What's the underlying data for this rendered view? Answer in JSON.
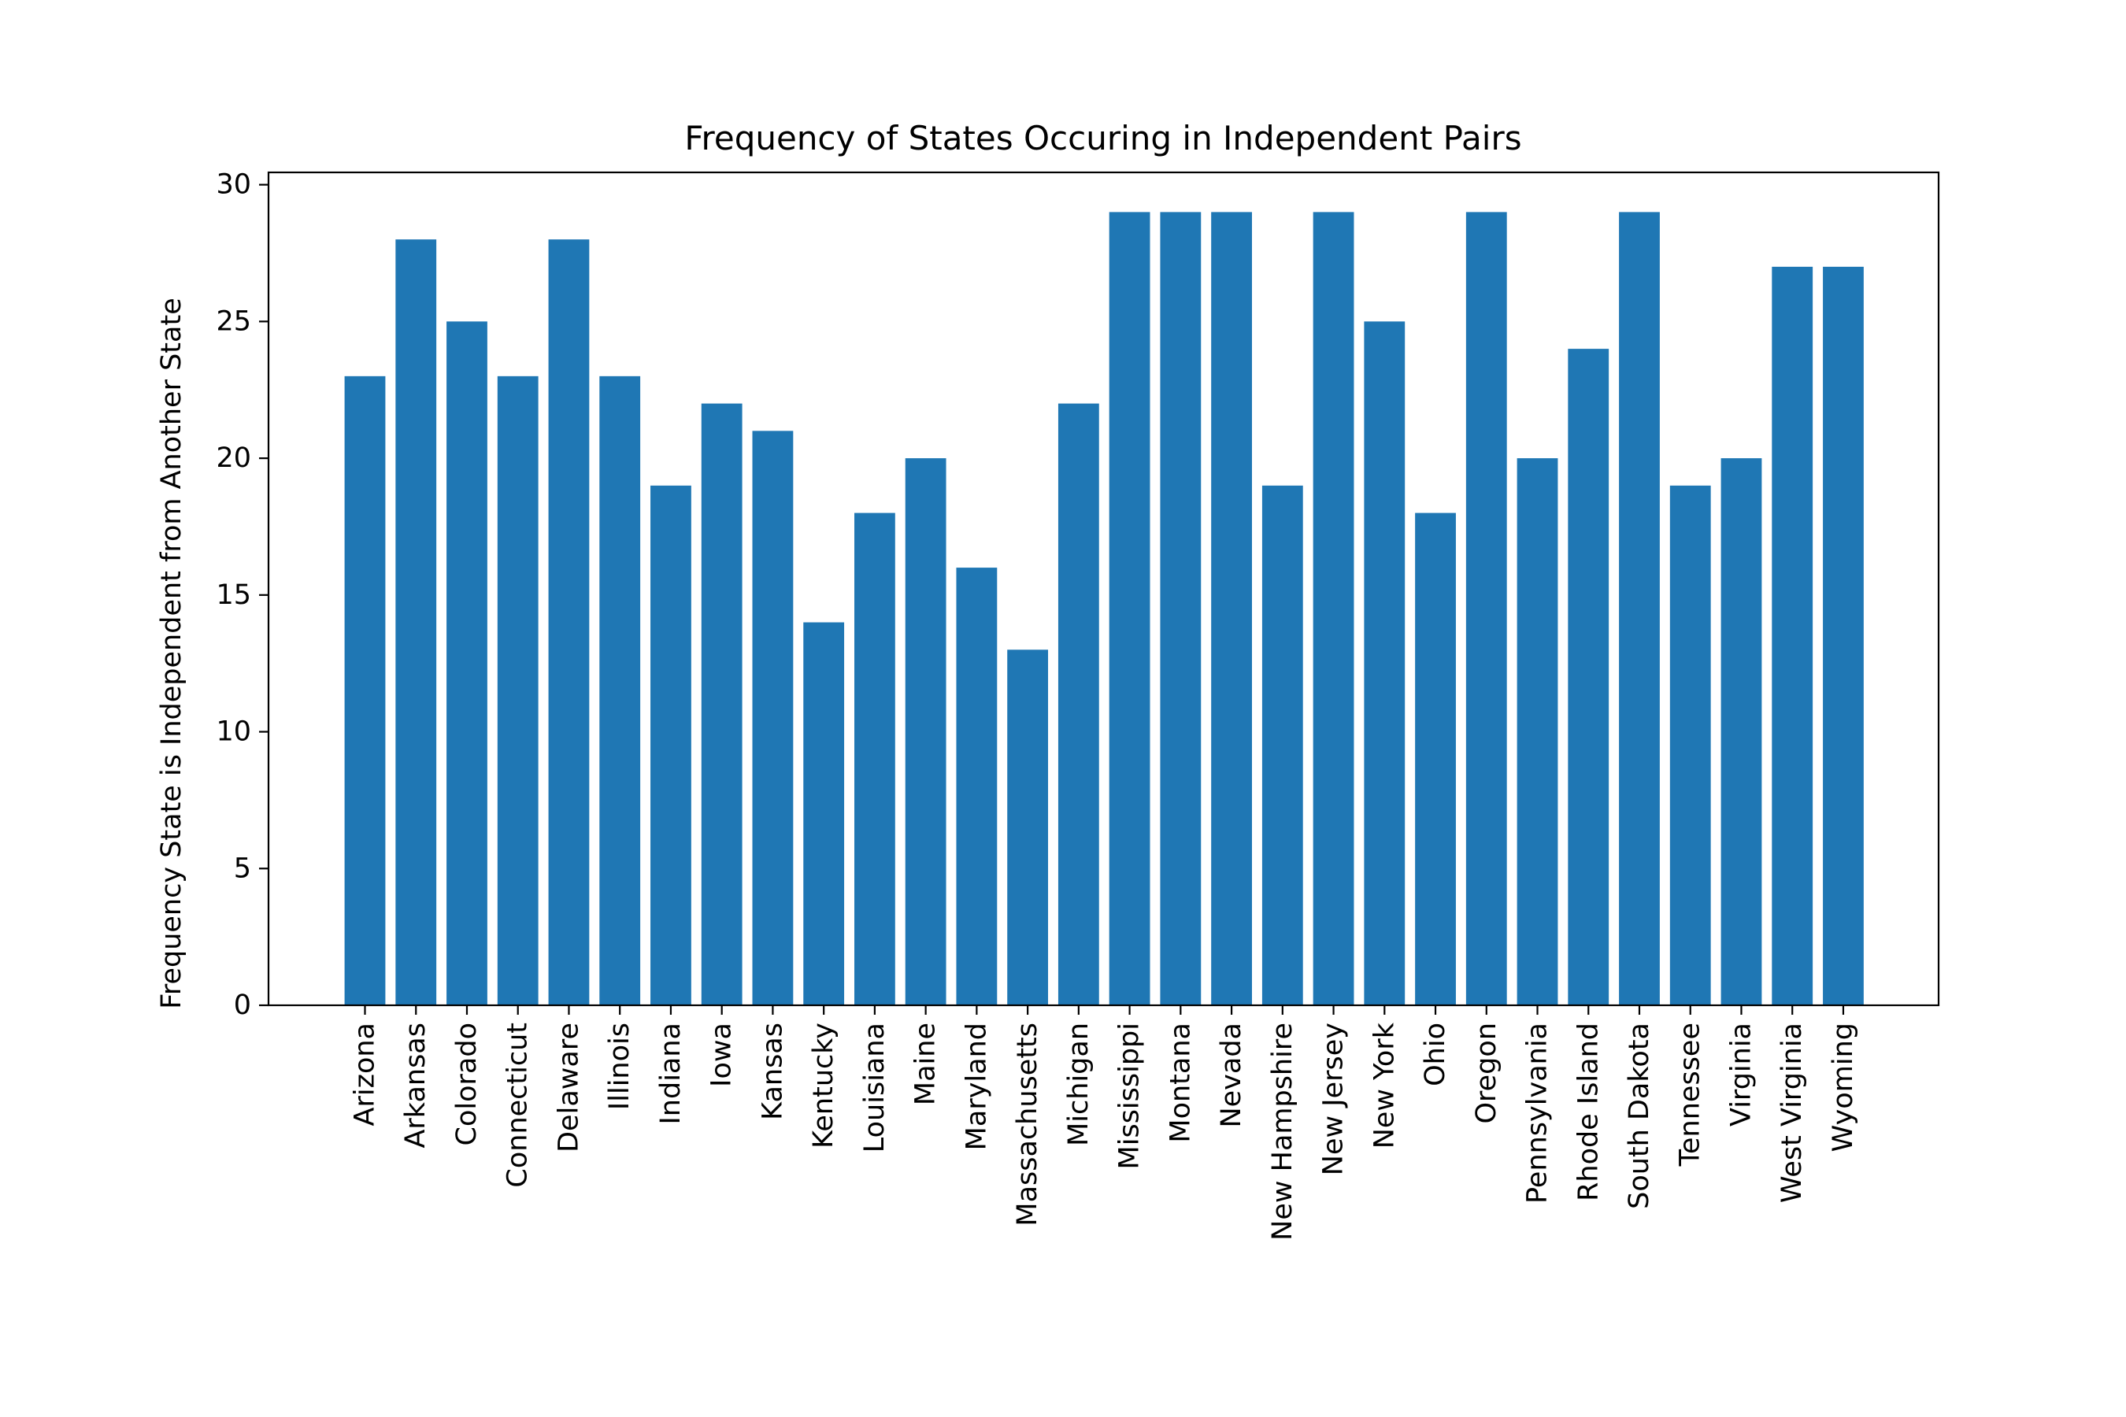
{
  "chart_data": {
    "type": "bar",
    "title": "Frequency of States Occuring in Independent Pairs",
    "xlabel": "",
    "ylabel": "Frequency State is Independent from Another State",
    "categories": [
      "Arizona",
      "Arkansas",
      "Colorado",
      "Connecticut",
      "Delaware",
      "Illinois",
      "Indiana",
      "Iowa",
      "Kansas",
      "Kentucky",
      "Louisiana",
      "Maine",
      "Maryland",
      "Massachusetts",
      "Michigan",
      "Mississippi",
      "Montana",
      "Nevada",
      "New Hampshire",
      "New Jersey",
      "New York",
      "Ohio",
      "Oregon",
      "Pennsylvania",
      "Rhode Island",
      "South Dakota",
      "Tennessee",
      "Virginia",
      "West Virginia",
      "Wyoming"
    ],
    "values": [
      23,
      28,
      25,
      23,
      28,
      23,
      19,
      22,
      21,
      14,
      18,
      20,
      16,
      13,
      22,
      29,
      29,
      29,
      19,
      29,
      25,
      18,
      29,
      20,
      24,
      29,
      19,
      20,
      27,
      27
    ],
    "ylim": [
      0,
      30.45
    ],
    "yticks": [
      0,
      5,
      10,
      15,
      20,
      25,
      30
    ],
    "grid": false,
    "bar_color": "#1f77b4"
  }
}
